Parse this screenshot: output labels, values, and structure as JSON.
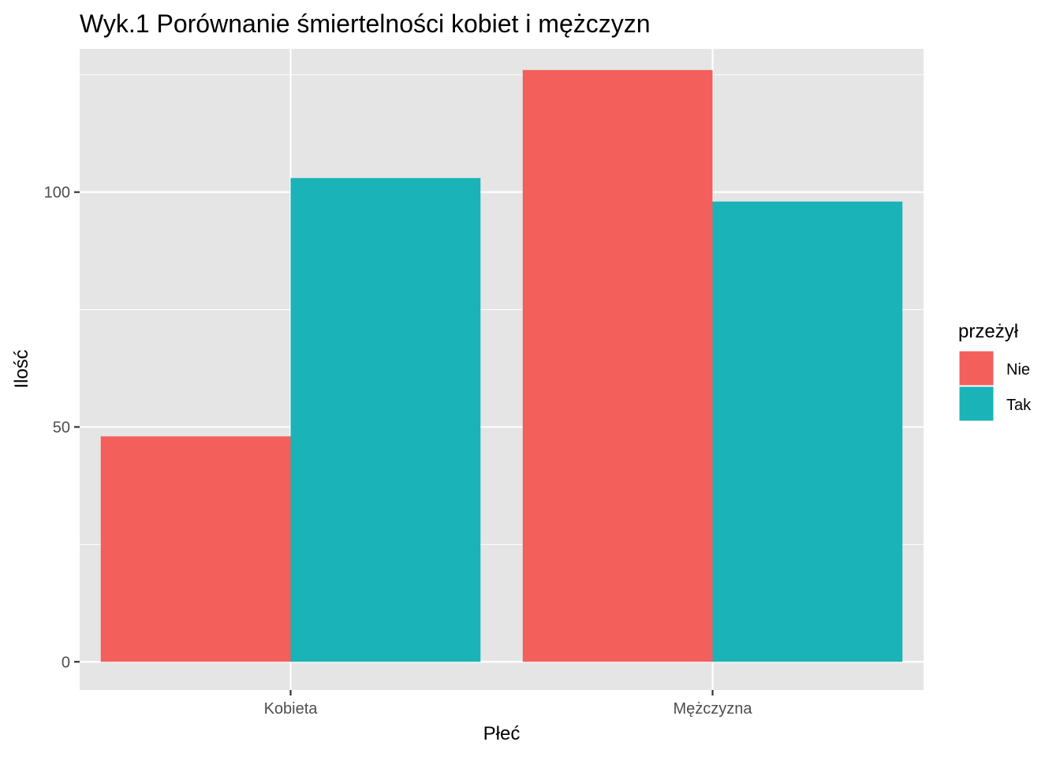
{
  "chart_data": {
    "type": "bar",
    "title": "Wyk.1 Porównanie śmiertelności kobiet i mężczyzn",
    "xlabel": "Płeć",
    "ylabel": "Ilość",
    "categories": [
      "Kobieta",
      "Mężczyzna"
    ],
    "series": [
      {
        "name": "Nie",
        "values": [
          48,
          126
        ],
        "color": "#F35F5B"
      },
      {
        "name": "Tak",
        "values": [
          103,
          98
        ],
        "color": "#19B3B8"
      }
    ],
    "ylim": [
      -6,
      130.5
    ],
    "yticks": [
      0,
      50,
      100
    ],
    "grid": true,
    "legend": {
      "title": "przeżył",
      "position": "right"
    },
    "colors": {
      "panel": "#E5E5E5",
      "grid": "#FFFFFF",
      "axis_text": "#4D4D4D"
    }
  }
}
